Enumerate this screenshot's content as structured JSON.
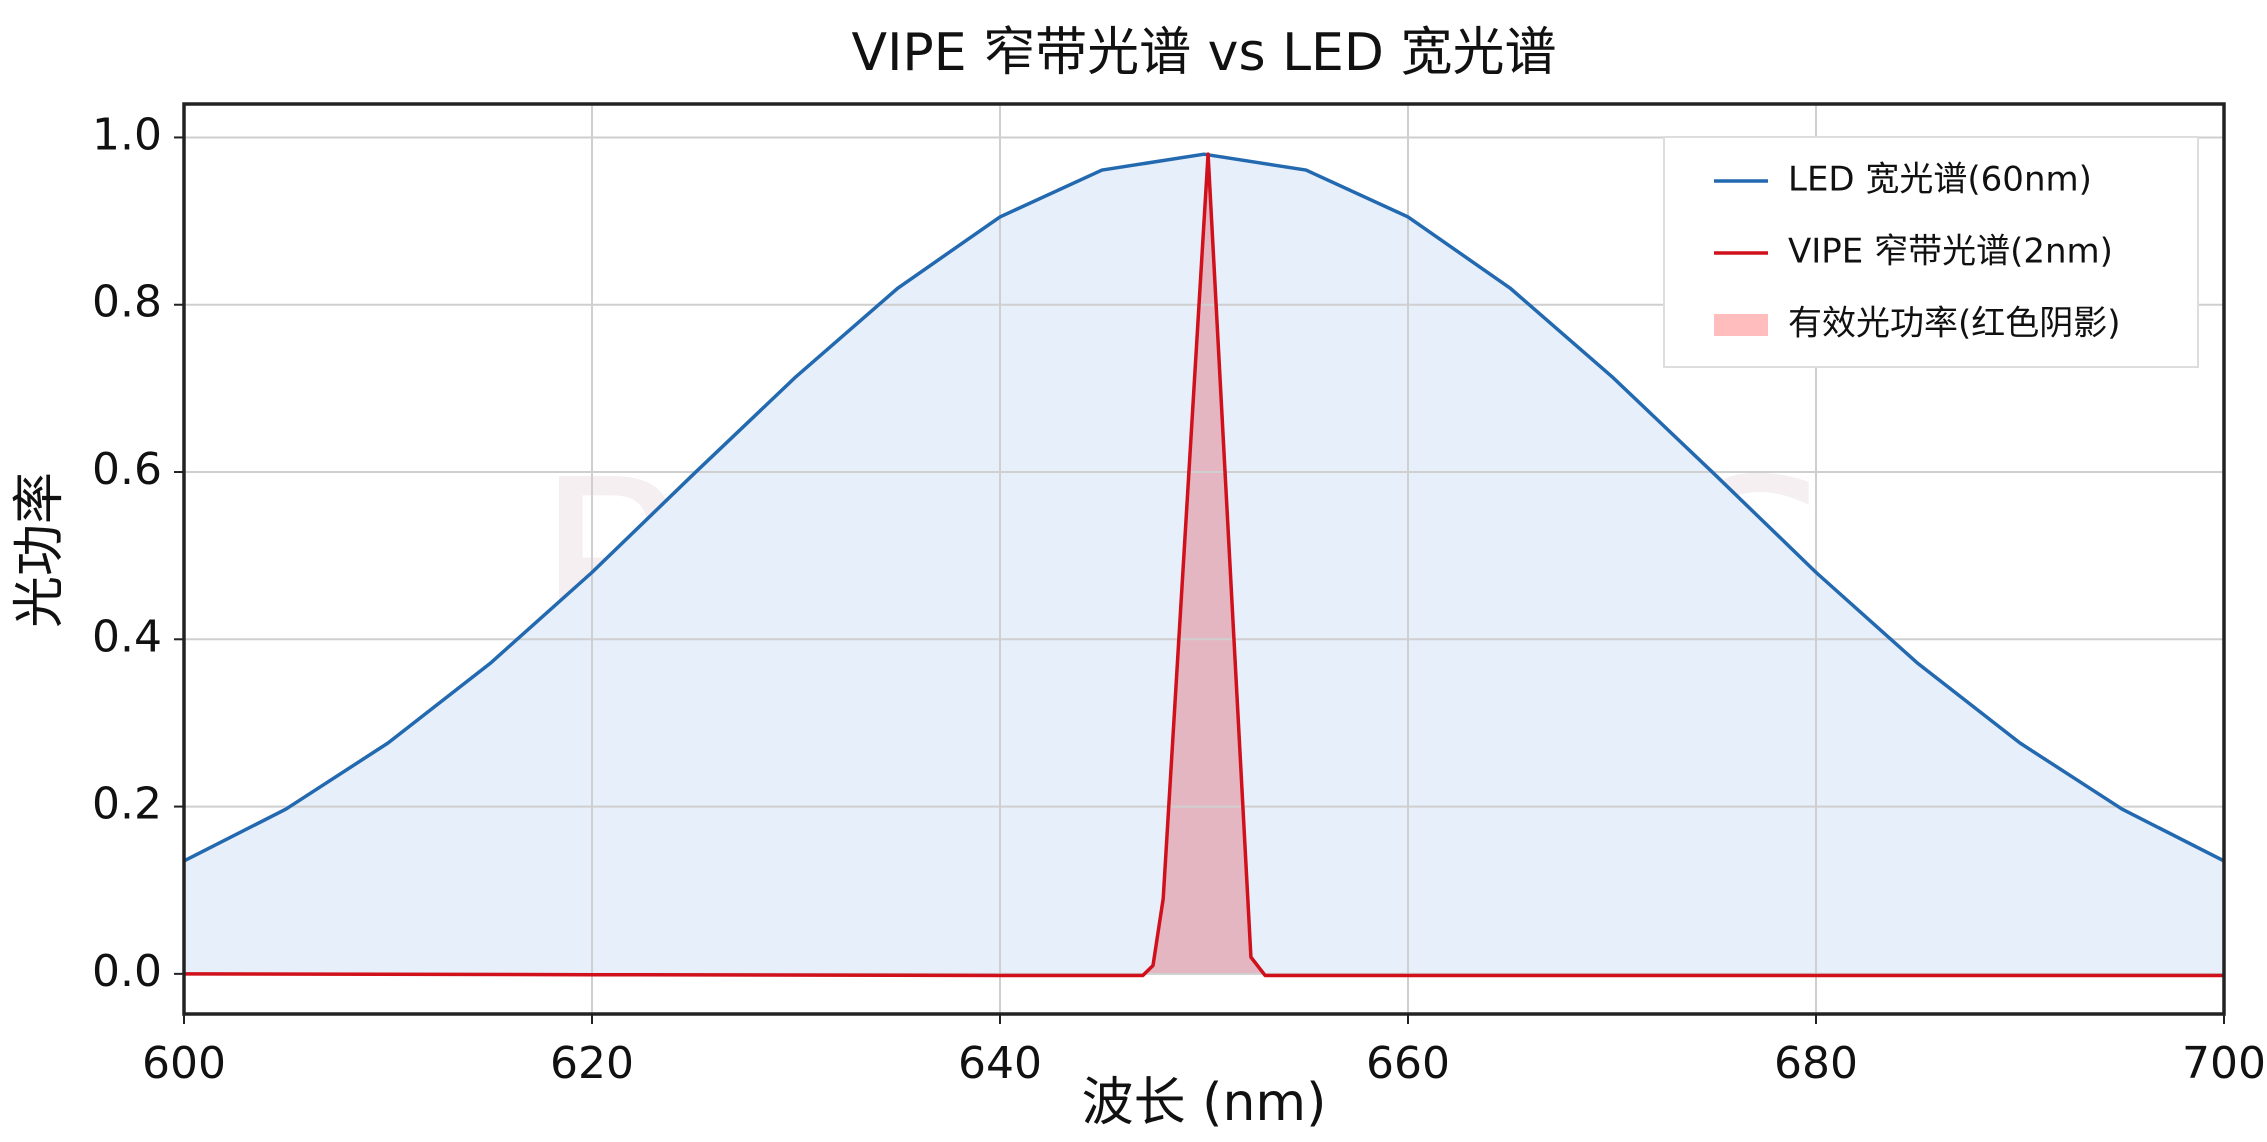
{
  "chart_data": {
    "type": "line",
    "title": "VIPE 窄带光谱 vs LED 宽光谱",
    "xlabel": "波长 (nm)",
    "ylabel": "光功率",
    "watermark": "RAYSEES",
    "xlim": [
      600,
      700
    ],
    "ylim": [
      -0.048,
      1.04
    ],
    "xticks": [
      600,
      620,
      640,
      660,
      680,
      700
    ],
    "yticks": [
      {
        "value": 0,
        "label": "0.0"
      },
      0.2,
      0.4,
      0.6,
      0.8,
      {
        "value": 1,
        "label": "1.0"
      }
    ],
    "grid": true,
    "legend": "upper right",
    "series": [
      {
        "name": "LED 宽光谱(60nm)",
        "color": "#2369b0",
        "fill": "#e7effb",
        "x": [
          600,
          605,
          610,
          615,
          620,
          625,
          630,
          635,
          640,
          645,
          650,
          655,
          660,
          665,
          670,
          675,
          680,
          685,
          690,
          695,
          700
        ],
        "values": [
          0.135,
          0.197,
          0.276,
          0.371,
          0.48,
          0.598,
          0.714,
          0.82,
          0.905,
          0.961,
          0.98,
          0.961,
          0.905,
          0.82,
          0.714,
          0.598,
          0.48,
          0.371,
          0.276,
          0.197,
          0.135
        ]
      },
      {
        "name": "VIPE 窄带光谱(2nm)",
        "color": "#d0101a",
        "fill": "#e4b6c1",
        "x": [
          600,
          620,
          640,
          647,
          647.5,
          648,
          650.2,
          652.3,
          653,
          670,
          700
        ],
        "values": [
          0,
          -0.001,
          -0.002,
          -0.002,
          0.01,
          0.09,
          0.98,
          0.02,
          -0.002,
          -0.002,
          -0.002
        ]
      }
    ],
    "fill_label": "有效光功率(红色阴影)",
    "fill_legend_color": "#ffbdbd"
  }
}
